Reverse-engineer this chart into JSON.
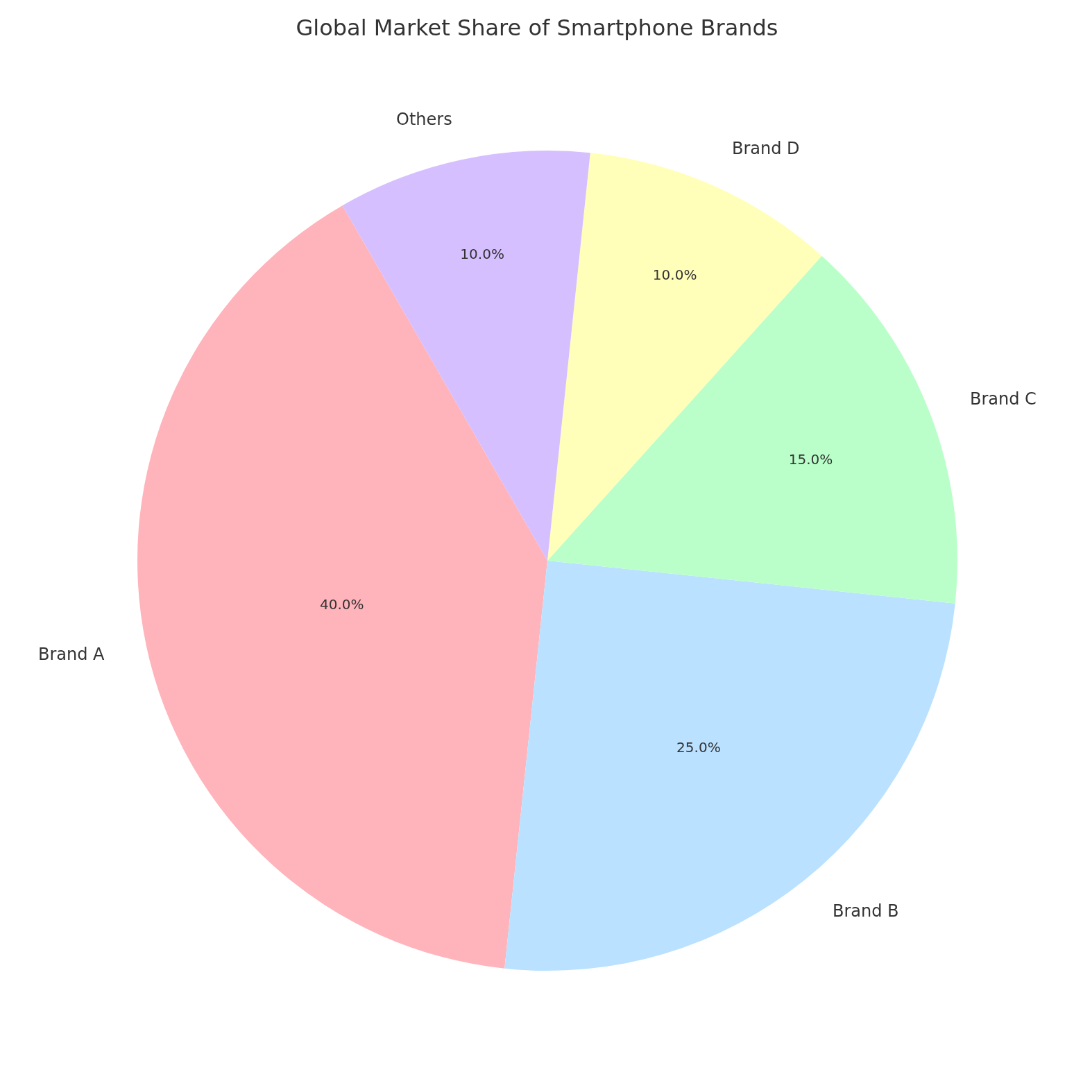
{
  "chart_data": {
    "type": "pie",
    "title": "Global Market Share of Smartphone Brands",
    "categories": [
      "Brand A",
      "Brand B",
      "Brand C",
      "Brand D",
      "Others"
    ],
    "values": [
      40,
      25,
      15,
      10,
      10
    ],
    "colors": [
      "#ffb3ba",
      "#bae1ff",
      "#baffc9",
      "#ffffba",
      "#d5bfff"
    ],
    "value_labels": [
      "40.0%",
      "25.0%",
      "15.0%",
      "10.0%",
      "10.0%"
    ]
  }
}
